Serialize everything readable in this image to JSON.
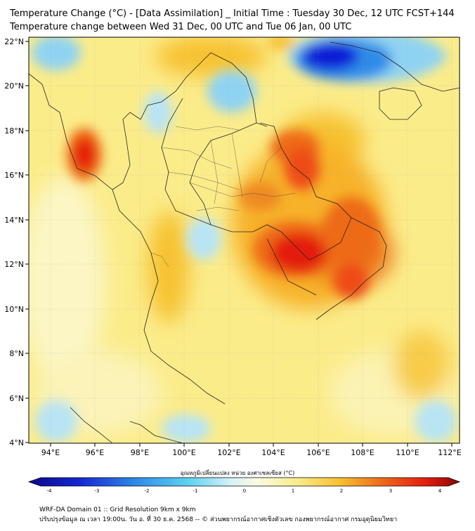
{
  "title_line1": "Temperature Change (°C) - [Data Assimilation] _ Initial Time : Tuesday 30 Dec, 12 UTC FCST+144",
  "title_line2": "Temperature change between Wed 31 Dec, 00 UTC and Tue 06 Jan, 00 UTC",
  "lat_labels": [
    "22°N",
    "20°N",
    "18°N",
    "16°N",
    "14°N",
    "12°N",
    "10°N",
    "8°N",
    "6°N",
    "4°N"
  ],
  "lon_labels": [
    "94°E",
    "96°E",
    "98°E",
    "100°E",
    "102°E",
    "104°E",
    "106°E",
    "108°E",
    "110°E",
    "112°E"
  ],
  "colorbar": {
    "label": "อุณหภูมิเปลี่ยนแปลง หน่วย องศาเซลเซียส (°C)",
    "ticks": [
      "-4",
      "-3",
      "-2",
      "-1",
      "0",
      "1",
      "2",
      "3",
      "4"
    ],
    "min": -4,
    "max": 4
  },
  "footer_line1": "WRF-DA Domain 01 :: Grid Resolution 9km x 9km",
  "footer_line2": "ปรับปรุงข้อมูล ณ เวลา 19:00น. วัน อ. ที่ 30 ธ.ค. 2568 -- © ส่วนพยากรณ์อากาศเชิงตัวเลข กองพยากรณ์อากาศ กรมอุตุนิยมวิทยา",
  "colors": {
    "cold_strong": "#0a1fd6",
    "cold": "#2f8be8",
    "cool": "#8fd3f2",
    "neutral": "#fbfbe8",
    "warm_light": "#fbec8a",
    "warm": "#f7c232",
    "hot": "#ee6a18",
    "very_hot": "#e41e0e"
  }
}
